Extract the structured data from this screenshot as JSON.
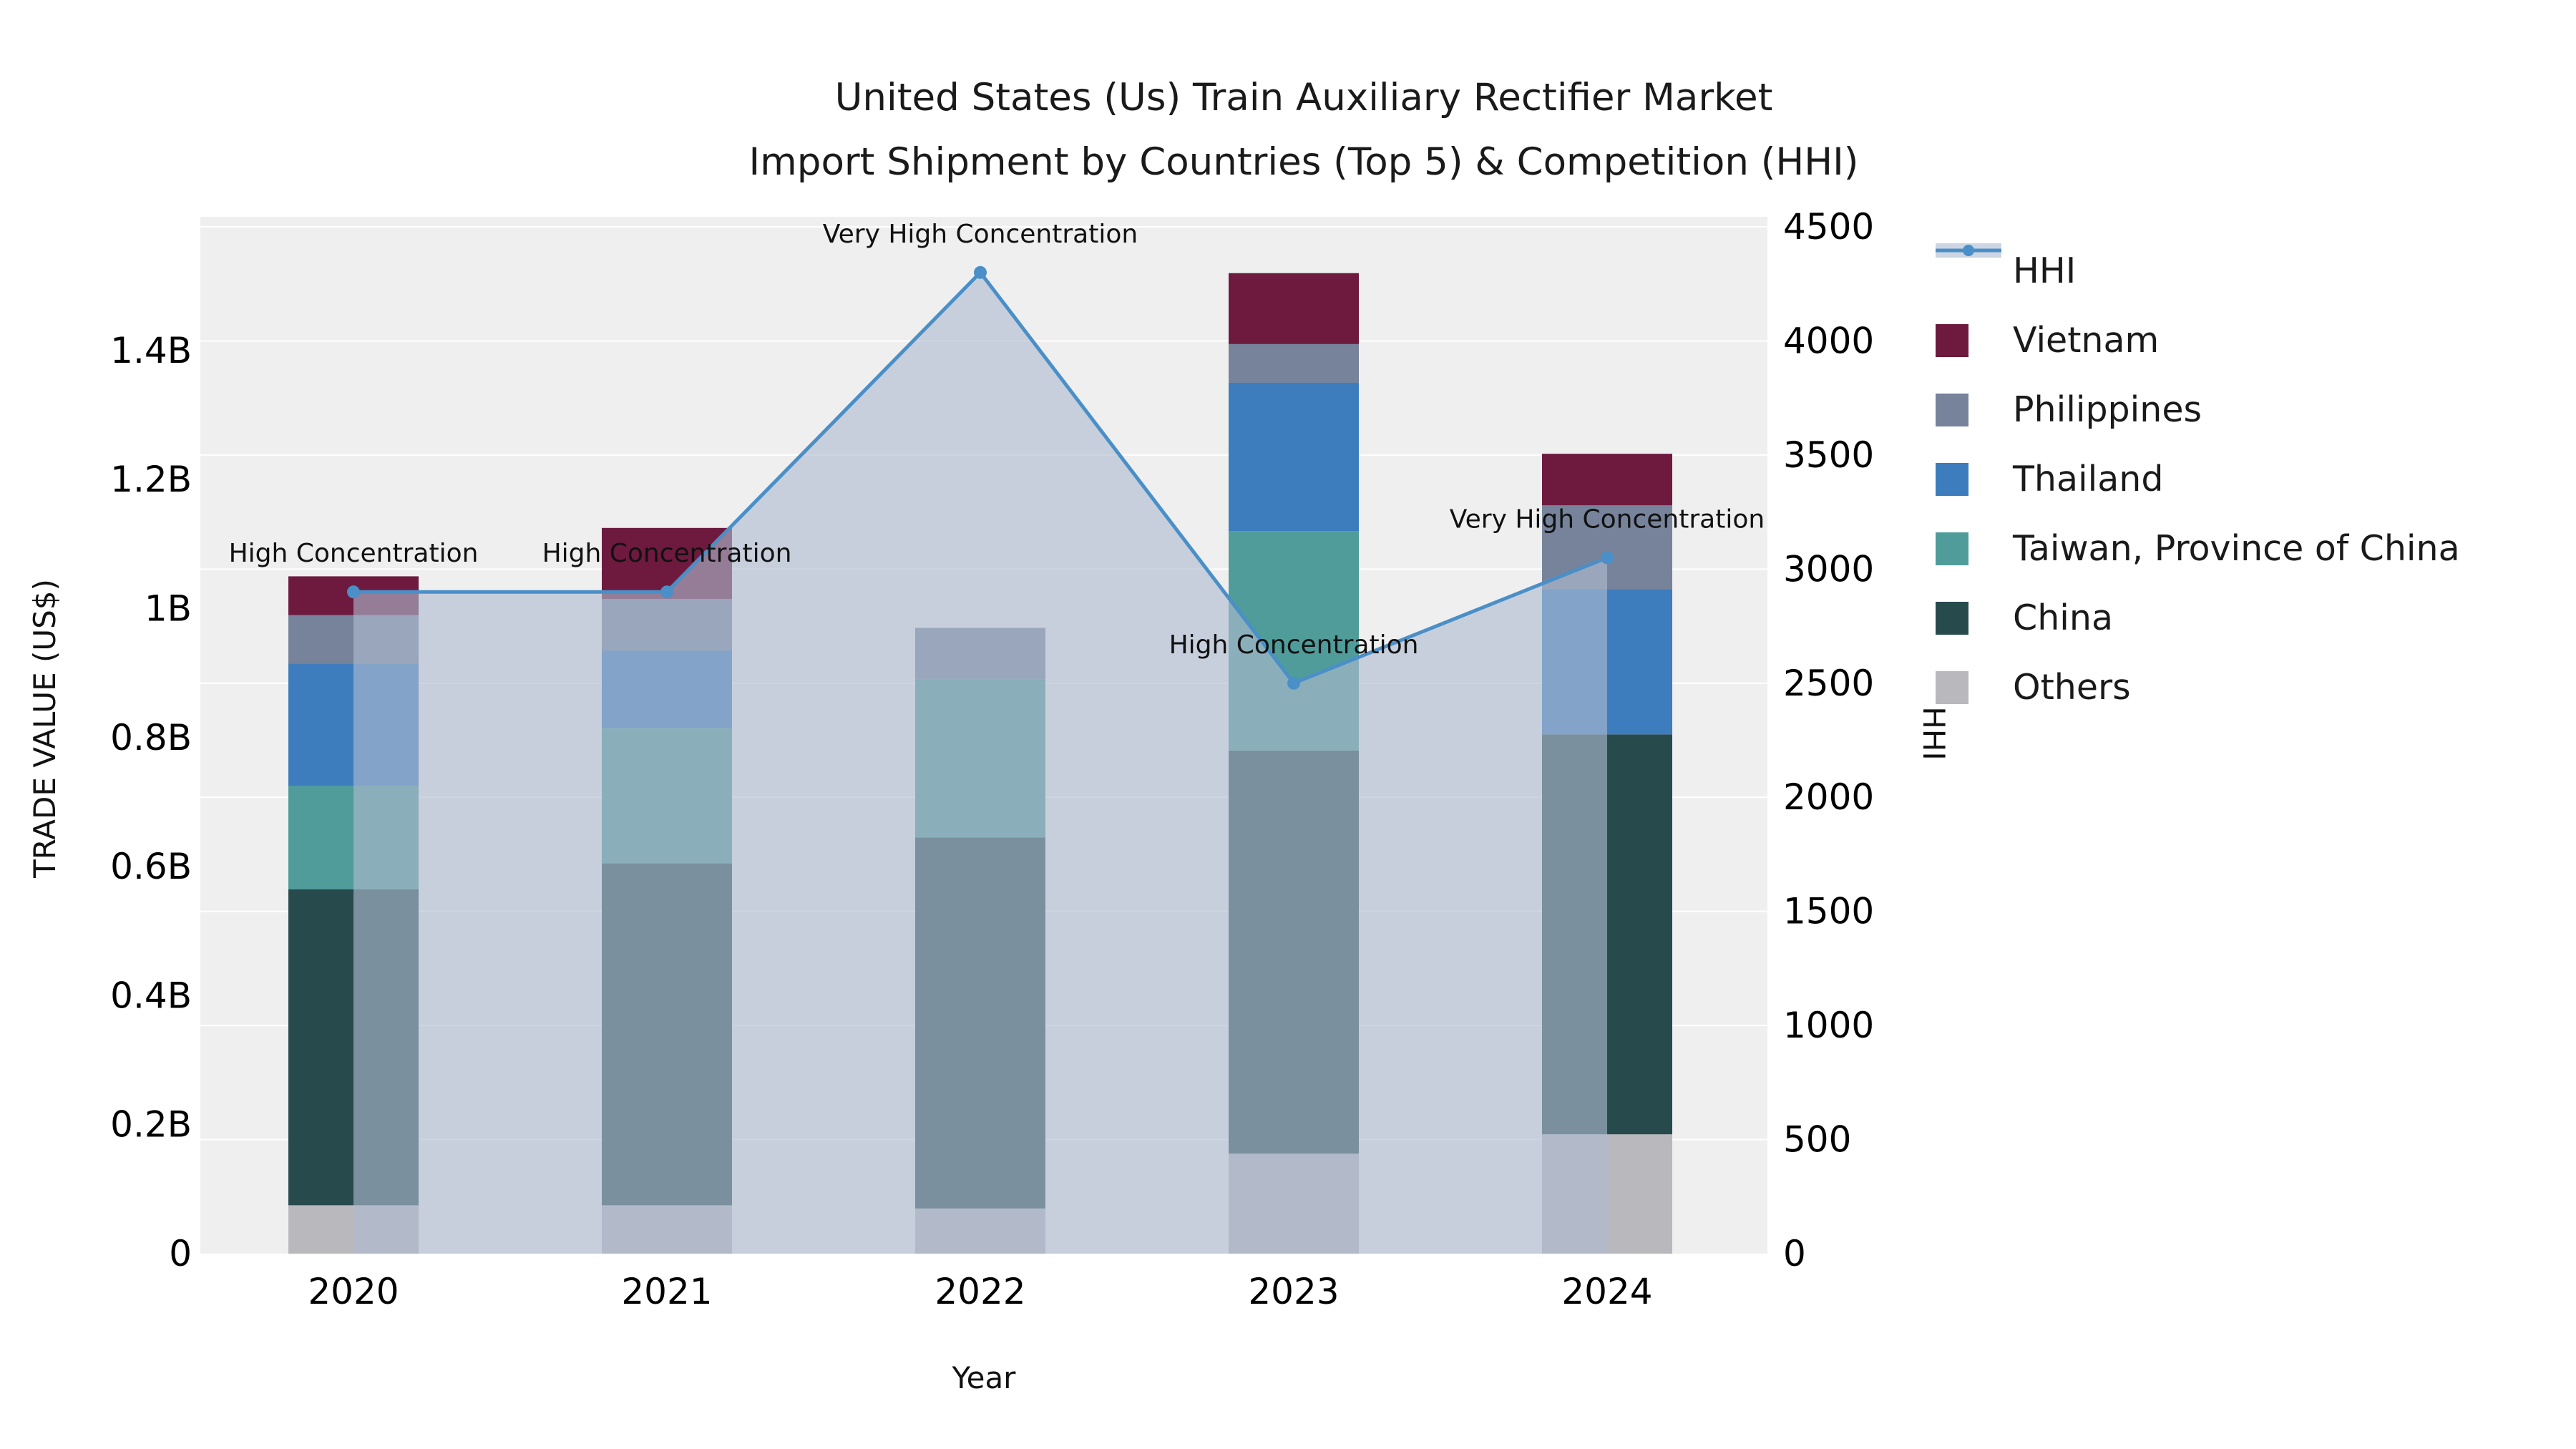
{
  "title": {
    "line1": "United States (Us) Train Auxiliary Rectifier Market",
    "line2": "Import Shipment by Countries (Top 5) & Competition (HHI)"
  },
  "axes": {
    "y_left_label": "TRADE VALUE (US$)",
    "y_right_label": "HHI",
    "x_label": "Year",
    "y_left_ticks": [
      "0",
      "0.2B",
      "0.4B",
      "0.6B",
      "0.8B",
      "1B",
      "1.2B",
      "1.4B"
    ],
    "y_right_ticks": [
      "0",
      "500",
      "1000",
      "1500",
      "2000",
      "2500",
      "3000",
      "3500",
      "4000",
      "4500"
    ]
  },
  "chart_data": {
    "type": "bar+line",
    "title": "United States (Us) Train Auxiliary Rectifier Market Import Shipment by Countries (Top 5) & Competition (HHI)",
    "xlabel": "Year",
    "ylabel_left": "TRADE VALUE (US$)",
    "ylabel_right": "HHI",
    "ylim_left_billions": [
      0,
      1.6
    ],
    "ylim_right": [
      0,
      4500
    ],
    "grid": true,
    "legend_position": "right",
    "categories": [
      "2020",
      "2021",
      "2022",
      "2023",
      "2024"
    ],
    "stack_order_bottom_to_top": [
      "Others",
      "China",
      "Taiwan, Province of China",
      "Thailand",
      "Philippines",
      "Vietnam"
    ],
    "series": [
      {
        "name": "Others",
        "color": "#b9b9bd",
        "values_billion_usd": [
          0.075,
          0.075,
          0.07,
          0.155,
          0.185
        ]
      },
      {
        "name": "China",
        "color": "#274a4d",
        "values_billion_usd": [
          0.49,
          0.53,
          0.575,
          0.625,
          0.62
        ]
      },
      {
        "name": "Taiwan, Province of China",
        "color": "#4f9c9a",
        "values_billion_usd": [
          0.16,
          0.21,
          0.245,
          0.34,
          0
        ]
      },
      {
        "name": "Thailand",
        "color": "#3d7dbd",
        "values_billion_usd": [
          0.19,
          0.12,
          0,
          0.23,
          0.225
        ]
      },
      {
        "name": "Philippines",
        "color": "#76839a",
        "values_billion_usd": [
          0.075,
          0.08,
          0.08,
          0.06,
          0.13
        ]
      },
      {
        "name": "Vietnam",
        "color": "#6d1a3e",
        "values_billion_usd": [
          0.06,
          0.11,
          0,
          0.11,
          0.08
        ]
      }
    ],
    "totals_billion_usd": [
      1.05,
      1.125,
      0.97,
      1.52,
      1.24
    ],
    "hhi": {
      "name": "HHI",
      "color": "#4a8fc7",
      "area_fill": "rgba(174,188,208,0.62)",
      "values": [
        2900,
        2900,
        4300,
        2500,
        3050
      ]
    },
    "annotations": [
      "High Concentration",
      "High Concentration",
      "Very High Concentration",
      "High Concentration",
      "Very High Concentration"
    ]
  },
  "legend": {
    "items": [
      {
        "label": "HHI",
        "color": "#4a8fc7",
        "type": "line"
      },
      {
        "label": "Vietnam",
        "color": "#6d1a3e",
        "type": "box"
      },
      {
        "label": "Philippines",
        "color": "#76839a",
        "type": "box"
      },
      {
        "label": "Thailand",
        "color": "#3d7dbd",
        "type": "box"
      },
      {
        "label": "Taiwan, Province of China",
        "color": "#4f9c9a",
        "type": "box"
      },
      {
        "label": "China",
        "color": "#274a4d",
        "type": "box"
      },
      {
        "label": "Others",
        "color": "#b9b9bd",
        "type": "box"
      }
    ]
  }
}
